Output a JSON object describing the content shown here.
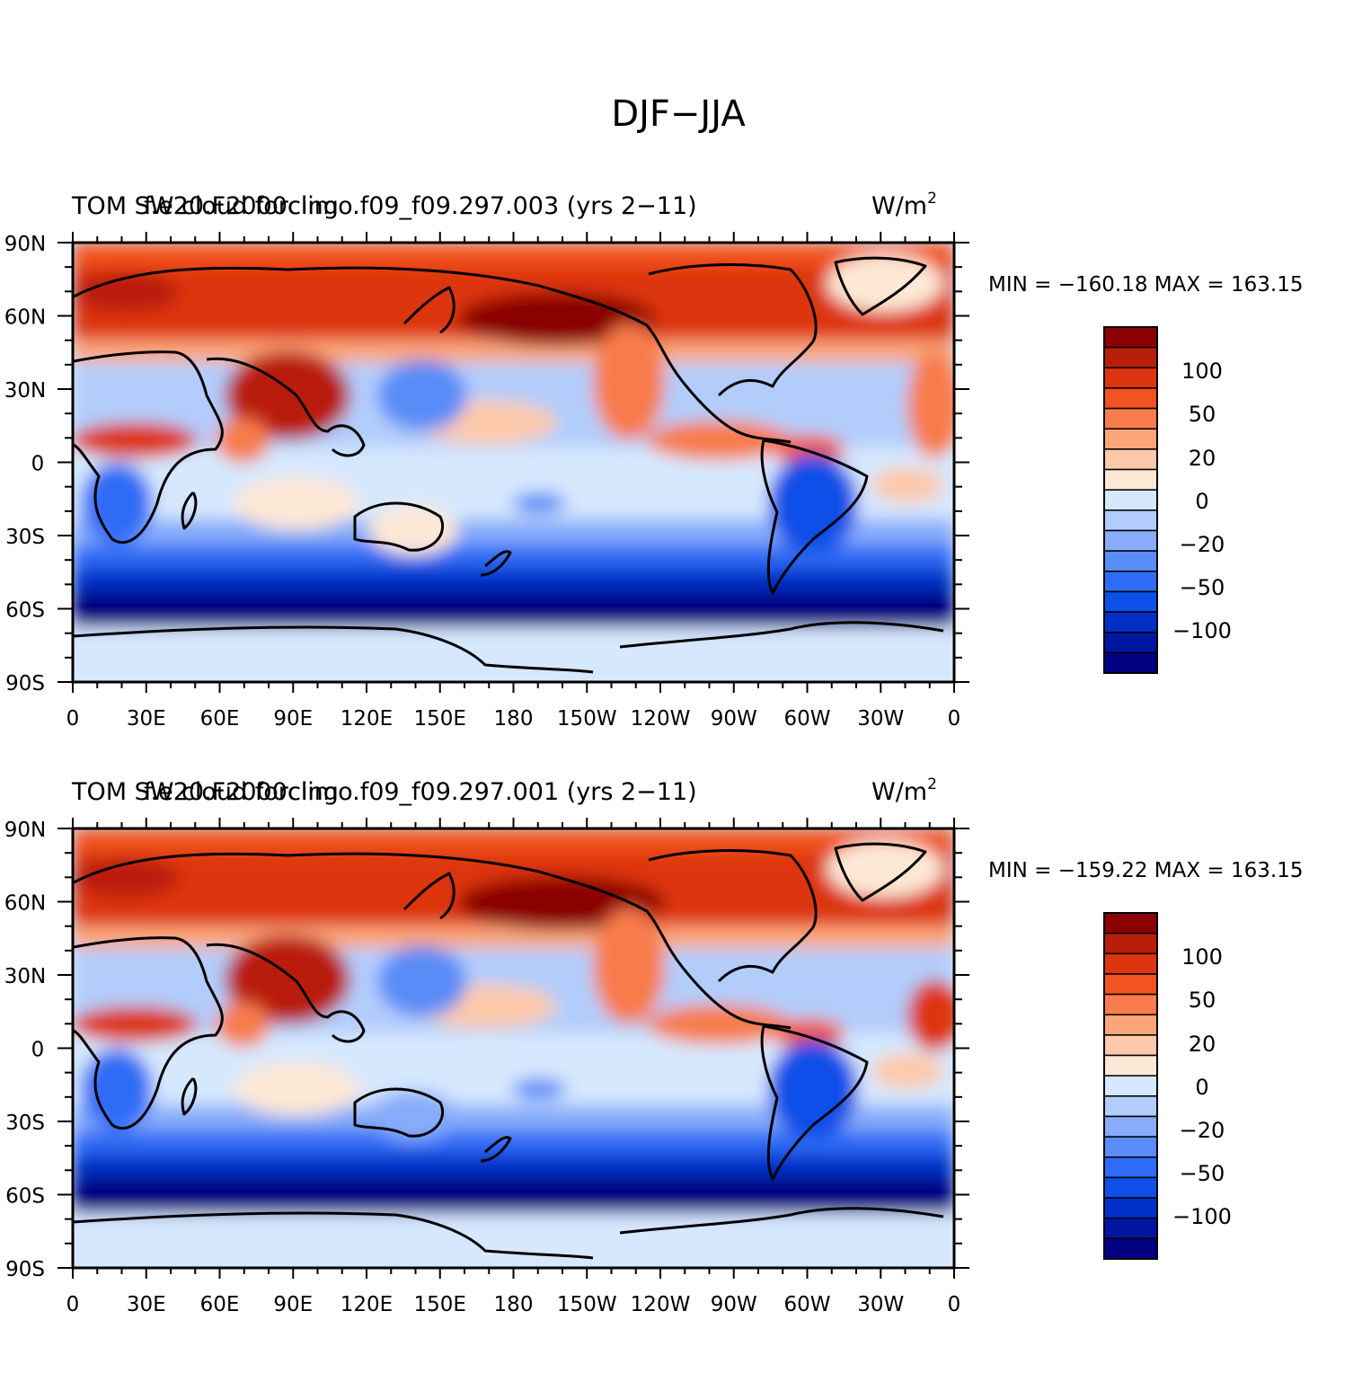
{
  "page_title": "DJF−JJA",
  "colors": {
    "scale": [
      "#000080",
      "#0016a0",
      "#0030c8",
      "#0d50e8",
      "#2f6cf5",
      "#5a8cf7",
      "#86acfa",
      "#b2cdfc",
      "#d6e8fe",
      "#fde8d6",
      "#fdc9aa",
      "#fca578",
      "#f87c4c",
      "#f2531f",
      "#dd3410",
      "#b91e0a",
      "#8b0000"
    ],
    "outline": "#000000"
  },
  "colorbar_labels": [
    "100",
    "50",
    "20",
    "0",
    "−20",
    "−50",
    "−100"
  ],
  "x_ticks": [
    "0",
    "30E",
    "60E",
    "90E",
    "120E",
    "150E",
    "180",
    "150W",
    "120W",
    "90W",
    "60W",
    "30W",
    "0"
  ],
  "y_ticks": [
    "90N",
    "60N",
    "30N",
    "0",
    "30S",
    "60S",
    "90S"
  ],
  "panels": [
    {
      "title_left_under": "TOM SW cloud forcing",
      "title_left_over": "f.e20.F2000climo.f09_f09.297.003 (yrs 2−11)",
      "units": "W/m",
      "units_sup": "2",
      "min_max": "MIN = −160.18  MAX = 163.15"
    },
    {
      "title_left_under": "TOM SW cloud forcing",
      "title_left_over": "f.e20.F2000climo.f09_f09.297.001 (yrs 2−11)",
      "units": "W/m",
      "units_sup": "2",
      "min_max": "MIN = −159.22  MAX = 163.15"
    }
  ]
}
